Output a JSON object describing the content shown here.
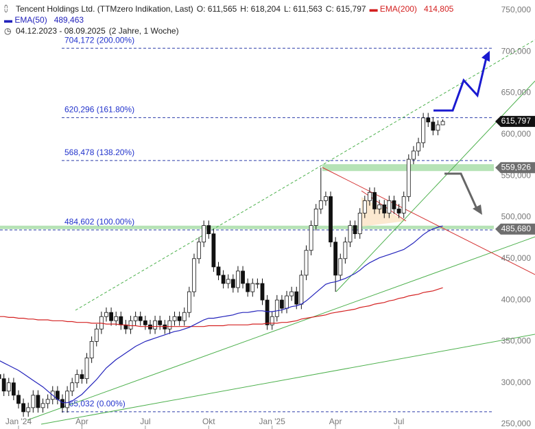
{
  "header": {
    "title": "Tencent Holdings Ltd. (TTMzero Indikation, Last)",
    "ohlc": [
      "O: 611,565",
      "H: 618,204",
      "L: 611,563",
      "C: 615,797"
    ],
    "period": "04.12.2023 - 08.09.2025",
    "span": "(2 Jahre, 1 Woche)"
  },
  "chart_data": {
    "type": "candlestick",
    "open": [
      310000,
      305000,
      290000,
      300000,
      285000,
      275000,
      265000,
      270000,
      285000,
      270000,
      275000,
      280000,
      290000,
      280000,
      270000,
      290000,
      300000,
      310000,
      305000,
      330000,
      350000,
      365000,
      380000,
      385000,
      375000,
      380000,
      370000,
      365000,
      375000,
      380000,
      375000,
      370000,
      365000,
      375000,
      370000,
      365000,
      375000,
      380000,
      375000,
      385000,
      410000,
      450000,
      470000,
      490000,
      480000,
      440000,
      430000,
      420000,
      425000,
      415000,
      435000,
      420000,
      410000,
      420000,
      420000,
      400000,
      370000,
      380000,
      400000,
      390000,
      405000,
      410000,
      395000,
      430000,
      460000,
      490000,
      510000,
      520000,
      525000,
      470000,
      430000,
      450000,
      470000,
      490000,
      480000,
      505000,
      520000,
      530000,
      510000,
      515000,
      505000,
      520000,
      510000,
      505000,
      525000,
      570000,
      580000,
      590000,
      620000,
      615000,
      605000,
      611565
    ],
    "high": [
      316000,
      311000,
      306000,
      306000,
      291000,
      281000,
      276000,
      291000,
      291000,
      281000,
      286000,
      296000,
      296000,
      286000,
      296000,
      306000,
      316000,
      316000,
      336000,
      356000,
      371000,
      386000,
      391000,
      391000,
      386000,
      386000,
      376000,
      381000,
      386000,
      386000,
      381000,
      376000,
      381000,
      381000,
      376000,
      381000,
      386000,
      386000,
      391000,
      416000,
      456000,
      476000,
      496000,
      496000,
      486000,
      446000,
      436000,
      431000,
      431000,
      441000,
      441000,
      426000,
      426000,
      426000,
      426000,
      406000,
      386000,
      406000,
      406000,
      411000,
      416000,
      416000,
      436000,
      466000,
      496000,
      516000,
      560000,
      531000,
      531000,
      476000,
      456000,
      476000,
      496000,
      496000,
      511000,
      526000,
      536000,
      536000,
      521000,
      521000,
      526000,
      526000,
      516000,
      531000,
      576000,
      586000,
      596000,
      626000,
      626000,
      621000,
      617000,
      618204
    ],
    "low": [
      299000,
      284000,
      284000,
      279000,
      269000,
      259000,
      259000,
      264000,
      264000,
      264000,
      269000,
      274000,
      274000,
      264000,
      264000,
      284000,
      294000,
      299000,
      299000,
      324000,
      344000,
      359000,
      374000,
      369000,
      369000,
      364000,
      359000,
      359000,
      369000,
      369000,
      364000,
      359000,
      359000,
      364000,
      359000,
      359000,
      369000,
      369000,
      369000,
      379000,
      404000,
      444000,
      464000,
      474000,
      434000,
      424000,
      414000,
      414000,
      409000,
      409000,
      414000,
      404000,
      404000,
      414000,
      394000,
      364000,
      364000,
      374000,
      384000,
      384000,
      399000,
      389000,
      389000,
      424000,
      454000,
      484000,
      504000,
      514000,
      464000,
      410000,
      424000,
      444000,
      464000,
      474000,
      474000,
      499000,
      514000,
      504000,
      504000,
      499000,
      499000,
      504000,
      499000,
      499000,
      519000,
      564000,
      574000,
      584000,
      609000,
      599000,
      599000,
      611563
    ],
    "close": [
      305000,
      290000,
      300000,
      285000,
      275000,
      265000,
      270000,
      285000,
      270000,
      275000,
      280000,
      290000,
      280000,
      270000,
      290000,
      300000,
      310000,
      305000,
      330000,
      350000,
      365000,
      380000,
      385000,
      375000,
      380000,
      370000,
      365000,
      375000,
      380000,
      375000,
      370000,
      365000,
      375000,
      370000,
      365000,
      375000,
      380000,
      375000,
      385000,
      410000,
      450000,
      470000,
      490000,
      480000,
      440000,
      430000,
      420000,
      425000,
      415000,
      435000,
      420000,
      410000,
      420000,
      420000,
      400000,
      370000,
      380000,
      400000,
      390000,
      405000,
      410000,
      395000,
      430000,
      460000,
      490000,
      510000,
      520000,
      525000,
      470000,
      430000,
      450000,
      470000,
      490000,
      480000,
      505000,
      520000,
      530000,
      510000,
      515000,
      505000,
      520000,
      510000,
      505000,
      525000,
      570000,
      580000,
      590000,
      620000,
      615000,
      605000,
      611565,
      615797
    ],
    "series": [
      {
        "name": "EMA(200)",
        "color": "#d42020",
        "legend_value": "414,805",
        "values": [
          380000,
          380000,
          379000,
          379000,
          378000,
          378000,
          377000,
          377000,
          376000,
          376000,
          376000,
          375000,
          375000,
          375000,
          374000,
          374000,
          373000,
          373000,
          373000,
          372000,
          372000,
          372000,
          371000,
          371000,
          371000,
          370000,
          370000,
          369000,
          369000,
          368000,
          368000,
          368000,
          368000,
          368000,
          368000,
          368000,
          368000,
          368000,
          368000,
          368000,
          368000,
          368000,
          368000,
          369000,
          369000,
          369000,
          369000,
          370000,
          370000,
          370000,
          370000,
          370000,
          371000,
          371000,
          371000,
          372000,
          372000,
          372000,
          373000,
          373000,
          374000,
          375000,
          377000,
          378000,
          379000,
          380000,
          381000,
          382000,
          384000,
          385000,
          386000,
          387000,
          388000,
          389000,
          391000,
          392000,
          393000,
          395000,
          396000,
          397000,
          399000,
          400000,
          402000,
          403000,
          405000,
          406000,
          407000,
          409000,
          410000,
          411000,
          413000,
          414805
        ]
      },
      {
        "name": "EMA(50)",
        "color": "#2222bb",
        "legend_value": "489,463",
        "values": [
          327000,
          324000,
          321000,
          318000,
          315000,
          311000,
          307000,
          303000,
          299000,
          295000,
          290000,
          285000,
          280000,
          276000,
          276000,
          278000,
          282000,
          286000,
          292000,
          298000,
          304000,
          311000,
          318000,
          323000,
          328000,
          332000,
          336000,
          340000,
          344000,
          347000,
          350000,
          352000,
          354000,
          356000,
          358000,
          360000,
          362000,
          363000,
          365000,
          367000,
          370000,
          373000,
          376000,
          378000,
          378000,
          379000,
          380000,
          381000,
          382000,
          384000,
          385000,
          385000,
          386000,
          387000,
          387000,
          386000,
          386000,
          387000,
          388000,
          390000,
          392000,
          393000,
          395000,
          399000,
          404000,
          409000,
          414000,
          419000,
          421000,
          422000,
          424000,
          426000,
          429000,
          432000,
          436000,
          441000,
          445000,
          448000,
          451000,
          453000,
          455000,
          457000,
          459000,
          461000,
          465000,
          469000,
          474000,
          479000,
          483000,
          486000,
          488000,
          489463
        ]
      }
    ],
    "ylim": [
      246700,
      762400
    ],
    "yticks": [
      {
        "value": 250000,
        "label": "250,000"
      },
      {
        "value": 300000,
        "label": "300,000"
      },
      {
        "value": 350000,
        "label": "350,000"
      },
      {
        "value": 400000,
        "label": "400,000"
      },
      {
        "value": 450000,
        "label": "450,000"
      },
      {
        "value": 500000,
        "label": "500,000"
      },
      {
        "value": 550000,
        "label": "550,000"
      },
      {
        "value": 600000,
        "label": "600,000"
      },
      {
        "value": 650000,
        "label": "650,000"
      },
      {
        "value": 700000,
        "label": "700,000"
      },
      {
        "value": 750000,
        "label": "750,000"
      }
    ],
    "xticks": [
      {
        "value": 4,
        "label": "Jan '24"
      },
      {
        "value": 17,
        "label": "Apr"
      },
      {
        "value": 30,
        "label": "Jul"
      },
      {
        "value": 43,
        "label": "Okt"
      },
      {
        "value": 56,
        "label": "Jan '25"
      },
      {
        "value": 69,
        "label": "Apr"
      },
      {
        "value": 82,
        "label": "Jul"
      }
    ],
    "fib_levels": [
      {
        "value": 704172,
        "label": "704,172 (200.00%)"
      },
      {
        "value": 620296,
        "label": "620,296 (161.80%)"
      },
      {
        "value": 568478,
        "label": "568,478 (138.20%)"
      },
      {
        "value": 484602,
        "label": "484,602 (100.00%)"
      },
      {
        "value": 265032,
        "label": "265,032 (0.00%)"
      }
    ],
    "price_tags": [
      {
        "value": 615797,
        "label": "615,797",
        "color": "#111111"
      },
      {
        "value": 559926,
        "label": "559,926",
        "color": "#6e6e6e",
        "band": true
      },
      {
        "value": 485680,
        "label": "485,680",
        "color": "#6e6e6e",
        "band": true
      }
    ]
  }
}
